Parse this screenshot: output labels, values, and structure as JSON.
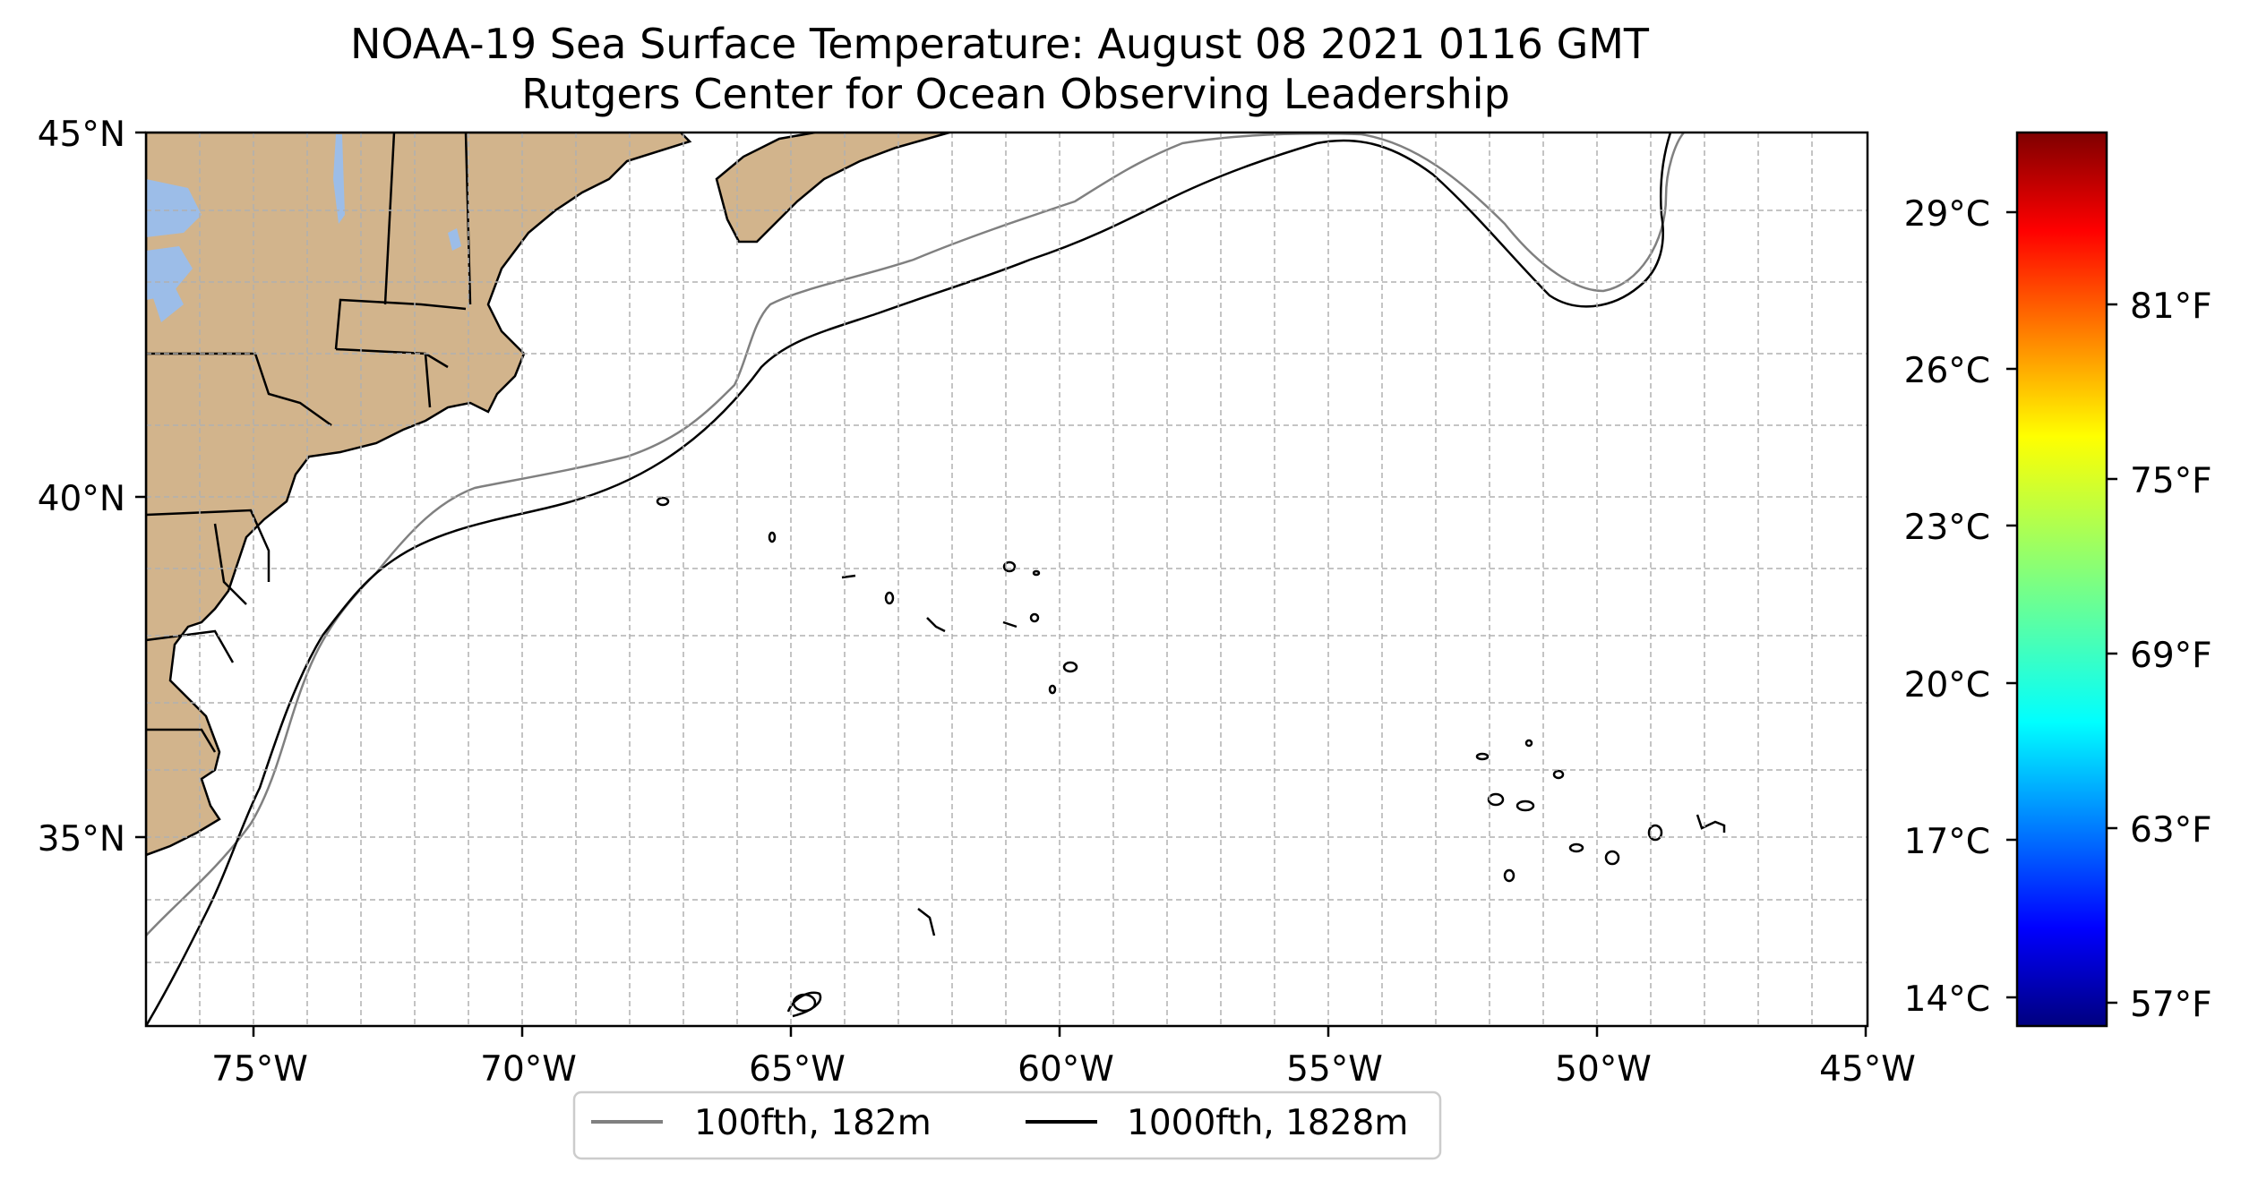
{
  "title": "NOAA-19 Sea Surface Temperature: August 08 2021 0116 GMT",
  "subtitle": "Rutgers Center for Ocean Observing Leadership",
  "map": {
    "lon_range": [
      -77,
      -45
    ],
    "lat_range": [
      32.5,
      45
    ],
    "lon_ticks": [
      "75°W",
      "70°W",
      "65°W",
      "60°W",
      "55°W",
      "50°W",
      "45°W"
    ],
    "lat_ticks": [
      "45°N",
      "40°N",
      "35°N"
    ],
    "land_color": "#d2b48c",
    "water_color": "#9cbde8",
    "grid": true
  },
  "colorbar": {
    "colormap": "jet",
    "celsius_ticks": [
      "29°C",
      "26°C",
      "23°C",
      "20°C",
      "17°C",
      "14°C"
    ],
    "fahrenheit_ticks": [
      "81°F",
      "75°F",
      "69°F",
      "63°F",
      "57°F"
    ]
  },
  "legend": {
    "placement": "bottom-center",
    "items": [
      {
        "label": "100fth, 182m",
        "color": "#808080"
      },
      {
        "label": "1000fth, 1828m",
        "color": "#000000"
      }
    ]
  }
}
